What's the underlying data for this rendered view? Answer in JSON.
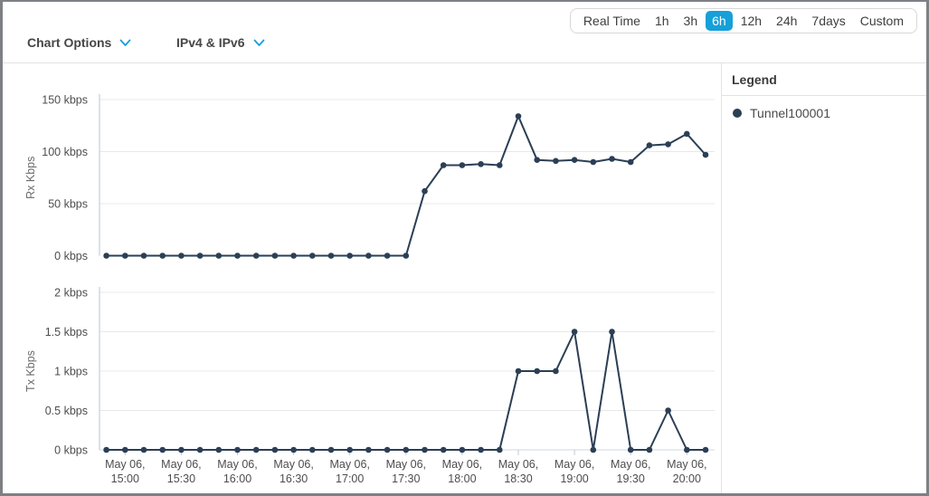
{
  "toolbar": {
    "time_ranges": [
      "Real Time",
      "1h",
      "3h",
      "6h",
      "12h",
      "24h",
      "7days",
      "Custom"
    ],
    "selected_range": "6h"
  },
  "filters": {
    "chart_options_label": "Chart Options",
    "ip_filter_label": "IPv4 & IPv6"
  },
  "legend": {
    "title": "Legend",
    "items": [
      {
        "label": "Tunnel100001",
        "color": "#2b3f55"
      }
    ]
  },
  "colors": {
    "selected_time_bg": "#16a0d9",
    "accent_blue": "#16a0d9",
    "series_line": "#2b3f55",
    "grid_line": "#e8e8e8",
    "axis_line": "#ccd8e4",
    "tick_text": "#4d4d4d",
    "axis_title_text": "#6b6b6b"
  },
  "chart_data": [
    {
      "type": "line",
      "name": "rx",
      "ylabel": "Rx Kbps",
      "ylim": [
        0,
        150
      ],
      "grid": true,
      "legend_position": "right",
      "yticks": [
        {
          "value": 0,
          "label": "0 kbps"
        },
        {
          "value": 50,
          "label": "50 kbps"
        },
        {
          "value": 100,
          "label": "100 kbps"
        },
        {
          "value": 150,
          "label": "150 kbps"
        }
      ],
      "x": [
        "14:50",
        "15:00",
        "15:10",
        "15:20",
        "15:30",
        "15:40",
        "15:50",
        "16:00",
        "16:10",
        "16:20",
        "16:30",
        "16:40",
        "16:50",
        "17:00",
        "17:10",
        "17:20",
        "17:30",
        "17:40",
        "17:50",
        "18:00",
        "18:10",
        "18:20",
        "18:30",
        "18:40",
        "18:50",
        "19:00",
        "19:10",
        "19:20",
        "19:30",
        "19:40",
        "19:50",
        "20:00",
        "20:10"
      ],
      "series": [
        {
          "name": "Tunnel100001",
          "values": [
            0,
            0,
            0,
            0,
            0,
            0,
            0,
            0,
            0,
            0,
            0,
            0,
            0,
            0,
            0,
            0,
            0,
            62,
            87,
            87,
            88,
            87,
            134,
            92,
            91,
            92,
            90,
            93,
            90,
            106,
            107,
            117,
            97
          ]
        }
      ]
    },
    {
      "type": "line",
      "name": "tx",
      "ylabel": "Tx Kbps",
      "ylim": [
        0,
        2
      ],
      "grid": true,
      "legend_position": "right",
      "yticks": [
        {
          "value": 0,
          "label": "0 kbps"
        },
        {
          "value": 0.5,
          "label": "0.5 kbps"
        },
        {
          "value": 1,
          "label": "1 kbps"
        },
        {
          "value": 1.5,
          "label": "1.5 kbps"
        },
        {
          "value": 2,
          "label": "2 kbps"
        }
      ],
      "x": [
        "14:50",
        "15:00",
        "15:10",
        "15:20",
        "15:30",
        "15:40",
        "15:50",
        "16:00",
        "16:10",
        "16:20",
        "16:30",
        "16:40",
        "16:50",
        "17:00",
        "17:10",
        "17:20",
        "17:30",
        "17:40",
        "17:50",
        "18:00",
        "18:10",
        "18:20",
        "18:30",
        "18:40",
        "18:50",
        "19:00",
        "19:10",
        "19:20",
        "19:30",
        "19:40",
        "19:50",
        "20:00",
        "20:10"
      ],
      "xticks": [
        {
          "index": 1,
          "line1": "May 06,",
          "line2": "15:00"
        },
        {
          "index": 4,
          "line1": "May 06,",
          "line2": "15:30"
        },
        {
          "index": 7,
          "line1": "May 06,",
          "line2": "16:00"
        },
        {
          "index": 10,
          "line1": "May 06,",
          "line2": "16:30"
        },
        {
          "index": 13,
          "line1": "May 06,",
          "line2": "17:00"
        },
        {
          "index": 16,
          "line1": "May 06,",
          "line2": "17:30"
        },
        {
          "index": 19,
          "line1": "May 06,",
          "line2": "18:00"
        },
        {
          "index": 22,
          "line1": "May 06,",
          "line2": "18:30"
        },
        {
          "index": 25,
          "line1": "May 06,",
          "line2": "19:00"
        },
        {
          "index": 28,
          "line1": "May 06,",
          "line2": "19:30"
        },
        {
          "index": 31,
          "line1": "May 06,",
          "line2": "20:00"
        }
      ],
      "series": [
        {
          "name": "Tunnel100001",
          "values": [
            0,
            0,
            0,
            0,
            0,
            0,
            0,
            0,
            0,
            0,
            0,
            0,
            0,
            0,
            0,
            0,
            0,
            0,
            0,
            0,
            0,
            0,
            1,
            1,
            1,
            1.5,
            0,
            1.5,
            0,
            0,
            0.5,
            0,
            0
          ]
        }
      ]
    }
  ]
}
